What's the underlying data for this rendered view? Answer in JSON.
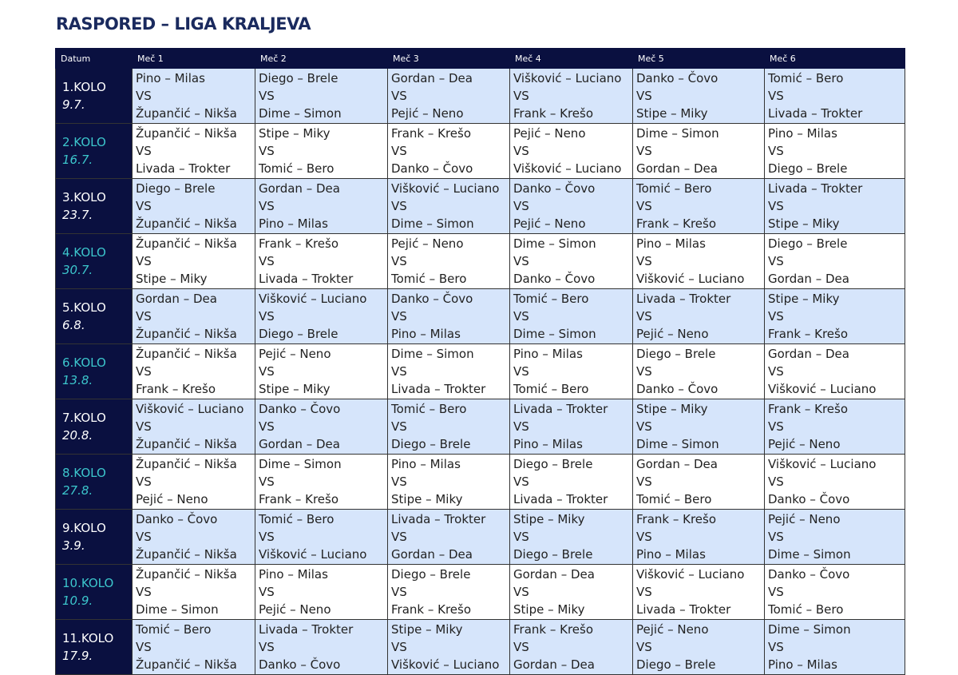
{
  "header": {
    "title": "RASPORED – LIGA KRALJEVA"
  },
  "table": {
    "columns": [
      "Datum",
      "Meč 1",
      "Meč 2",
      "Meč 3",
      "Meč 4",
      "Meč 5",
      "Meč 6"
    ],
    "rows": [
      {
        "round": "1.KOLO",
        "date": "9.7.",
        "matches": [
          [
            "Pino – Milas",
            "VS",
            "Župančić – Nikša"
          ],
          [
            "Diego – Brele",
            "VS",
            "Dime – Simon"
          ],
          [
            "Gordan – Dea",
            "VS",
            "Pejić – Neno"
          ],
          [
            "Višković – Luciano",
            "VS",
            "Frank – Krešo"
          ],
          [
            "Danko – Čovo",
            "VS",
            "Stipe – Miky"
          ],
          [
            "Tomić – Bero",
            "VS",
            "Livada – Trokter"
          ]
        ]
      },
      {
        "round": "2.KOLO",
        "date": "16.7.",
        "matches": [
          [
            "Župančić – Nikša",
            "VS",
            "Livada – Trokter"
          ],
          [
            "Stipe – Miky",
            "VS",
            "Tomić – Bero"
          ],
          [
            "Frank – Krešo",
            "VS",
            "Danko – Čovo"
          ],
          [
            "Pejić – Neno",
            "VS",
            "Višković – Luciano"
          ],
          [
            "Dime – Simon",
            "VS",
            "Gordan – Dea"
          ],
          [
            "Pino – Milas",
            "VS",
            "Diego – Brele"
          ]
        ]
      },
      {
        "round": "3.KOLO",
        "date": "23.7.",
        "matches": [
          [
            "Diego – Brele",
            "VS",
            "Župančić – Nikša"
          ],
          [
            "Gordan – Dea",
            "VS",
            "Pino – Milas"
          ],
          [
            "Višković – Luciano",
            "VS",
            "Dime – Simon"
          ],
          [
            "Danko – Čovo",
            "VS",
            "Pejić – Neno"
          ],
          [
            "Tomić – Bero",
            "VS",
            "Frank – Krešo"
          ],
          [
            "Livada – Trokter",
            "VS",
            "Stipe – Miky"
          ]
        ]
      },
      {
        "round": "4.KOLO",
        "date": "30.7.",
        "matches": [
          [
            "Župančić – Nikša",
            "VS",
            "Stipe – Miky"
          ],
          [
            "Frank – Krešo",
            "VS",
            "Livada – Trokter"
          ],
          [
            "Pejić – Neno",
            "VS",
            "Tomić – Bero"
          ],
          [
            "Dime – Simon",
            "VS",
            "Danko – Čovo"
          ],
          [
            "Pino – Milas",
            "VS",
            "Višković – Luciano"
          ],
          [
            "Diego – Brele",
            "VS",
            "Gordan – Dea"
          ]
        ]
      },
      {
        "round": "5.KOLO",
        "date": "6.8.",
        "matches": [
          [
            "Gordan – Dea",
            "VS",
            "Župančić – Nikša"
          ],
          [
            "Višković – Luciano",
            "VS",
            "Diego – Brele"
          ],
          [
            "Danko – Čovo",
            "VS",
            "Pino – Milas"
          ],
          [
            "Tomić – Bero",
            "VS",
            "Dime – Simon"
          ],
          [
            "Livada – Trokter",
            "VS",
            "Pejić – Neno"
          ],
          [
            "Stipe – Miky",
            "VS",
            "Frank – Krešo"
          ]
        ]
      },
      {
        "round": "6.KOLO",
        "date": "13.8.",
        "matches": [
          [
            "Župančić – Nikša",
            "VS",
            "Frank – Krešo"
          ],
          [
            "Pejić – Neno",
            "VS",
            "Stipe – Miky"
          ],
          [
            "Dime – Simon",
            "VS",
            "Livada – Trokter"
          ],
          [
            "Pino – Milas",
            "VS",
            "Tomić – Bero"
          ],
          [
            "Diego – Brele",
            "VS",
            "Danko – Čovo"
          ],
          [
            "Gordan – Dea",
            "VS",
            "Višković – Luciano"
          ]
        ]
      },
      {
        "round": "7.KOLO",
        "date": "20.8.",
        "matches": [
          [
            "Višković – Luciano",
            "VS",
            "Župančić – Nikša"
          ],
          [
            "Danko – Čovo",
            "VS",
            "Gordan – Dea"
          ],
          [
            "Tomić – Bero",
            "VS",
            "Diego – Brele"
          ],
          [
            "Livada – Trokter",
            "VS",
            "Pino – Milas"
          ],
          [
            "Stipe – Miky",
            "VS",
            "Dime – Simon"
          ],
          [
            "Frank – Krešo",
            "VS",
            "Pejić – Neno"
          ]
        ]
      },
      {
        "round": "8.KOLO",
        "date": "27.8.",
        "matches": [
          [
            "Župančić – Nikša",
            "VS",
            "Pejić – Neno"
          ],
          [
            "Dime – Simon",
            "VS",
            "Frank – Krešo"
          ],
          [
            "Pino – Milas",
            "VS",
            "Stipe – Miky"
          ],
          [
            "Diego – Brele",
            "VS",
            "Livada – Trokter"
          ],
          [
            "Gordan – Dea",
            "VS",
            "Tomić – Bero"
          ],
          [
            "Višković – Luciano",
            "VS",
            "Danko – Čovo"
          ]
        ]
      },
      {
        "round": "9.KOLO",
        "date": "3.9.",
        "matches": [
          [
            "Danko – Čovo",
            "VS",
            "Župančić – Nikša"
          ],
          [
            "Tomić – Bero",
            "VS",
            "Višković – Luciano"
          ],
          [
            "Livada – Trokter",
            "VS",
            "Gordan – Dea"
          ],
          [
            "Stipe – Miky",
            "VS",
            "Diego – Brele"
          ],
          [
            "Frank – Krešo",
            "VS",
            "Pino – Milas"
          ],
          [
            "Pejić – Neno",
            "VS",
            "Dime – Simon"
          ]
        ]
      },
      {
        "round": "10.KOLO",
        "date": "10.9.",
        "matches": [
          [
            "Župančić – Nikša",
            "VS",
            "Dime – Simon"
          ],
          [
            "Pino – Milas",
            "VS",
            "Pejić – Neno"
          ],
          [
            "Diego – Brele",
            "VS",
            "Frank – Krešo"
          ],
          [
            "Gordan – Dea",
            "VS",
            "Stipe – Miky"
          ],
          [
            "Višković – Luciano",
            "VS",
            "Livada – Trokter"
          ],
          [
            "Danko – Čovo",
            "VS",
            "Tomić – Bero"
          ]
        ]
      },
      {
        "round": "11.KOLO",
        "date": "17.9.",
        "matches": [
          [
            "Tomić – Bero",
            "VS",
            "Župančić – Nikša"
          ],
          [
            "Livada – Trokter",
            "VS",
            "Danko – Čovo"
          ],
          [
            "Stipe – Miky",
            "VS",
            "Višković – Luciano"
          ],
          [
            "Frank – Krešo",
            "VS",
            "Gordan – Dea"
          ],
          [
            "Pejić – Neno",
            "VS",
            "Diego – Brele"
          ],
          [
            "Dime – Simon",
            "VS",
            "Pino – Milas"
          ]
        ]
      }
    ]
  }
}
